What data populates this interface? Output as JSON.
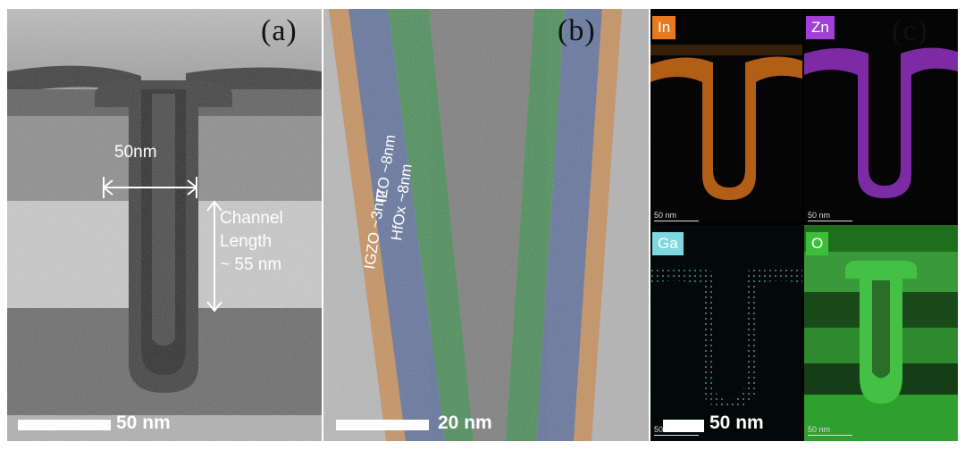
{
  "panel_a": {
    "label": "(a)",
    "width_label": "50nm",
    "channel_label_line1": "Channel",
    "channel_label_line2": "Length",
    "channel_label_line3": "~ 55 nm",
    "scalebar": "50 nm"
  },
  "panel_b": {
    "label": "(b)",
    "layer_izo": "IZO ~8nm",
    "layer_hfox": "HfOx ~8nm",
    "layer_igzo": "IGZO ~3nm",
    "scalebar": "20 nm",
    "colors": {
      "igzo": "#c98a4e",
      "hfox": "#5a6c9a",
      "izo": "#3f8a4f"
    }
  },
  "panel_c": {
    "label": "(c)",
    "scalebar": "50 nm",
    "maps": [
      {
        "element": "In",
        "color": "#e87a1e",
        "mini_scale": "50 nm"
      },
      {
        "element": "Zn",
        "color": "#a23fd6",
        "mini_scale": "50 nm"
      },
      {
        "element": "Ga",
        "color": "#7fd8e0",
        "mini_scale": "50 nm"
      },
      {
        "element": "O",
        "color": "#3bbf3b",
        "mini_scale": "50 nm"
      }
    ]
  }
}
